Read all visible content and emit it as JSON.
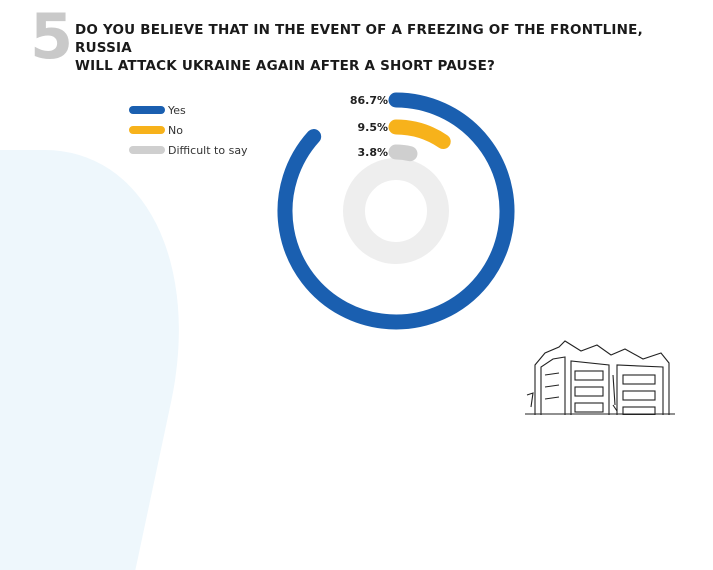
{
  "question": {
    "number": "5",
    "line1": "DO YOU BELIEVE THAT IN THE EVENT OF A FREEZING OF THE FRONTLINE, RUSSIA",
    "line2": "WILL ATTACK UKRAINE AGAIN AFTER A SHORT PAUSE?"
  },
  "colors": {
    "yes": "#1a5fb0",
    "no": "#f7b21b",
    "difficult": "#cfcfcf",
    "inner_ring": "#eeeeee"
  },
  "chart_data": {
    "type": "radial-bar",
    "unit": "%",
    "max": 100,
    "series": [
      {
        "name": "Yes",
        "value": 86.7,
        "label": "86.7%",
        "color": "#1a5fb0"
      },
      {
        "name": "No",
        "value": 9.5,
        "label": "9.5%",
        "color": "#f7b21b"
      },
      {
        "name": "Difficult to say",
        "value": 3.8,
        "label": "3.8%",
        "color": "#cfcfcf"
      }
    ],
    "legend_position": "top-left"
  }
}
